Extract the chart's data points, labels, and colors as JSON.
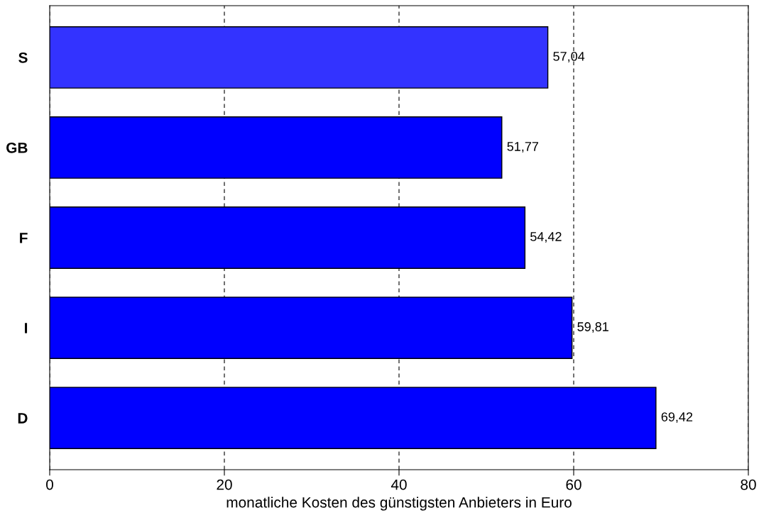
{
  "chart_data": {
    "type": "bar",
    "orientation": "horizontal",
    "xlabel": "monatliche Kosten des günstigsten Anbieters in Euro",
    "categories": [
      "S",
      "GB",
      "F",
      "I",
      "D"
    ],
    "values": [
      57.04,
      51.77,
      54.42,
      59.81,
      69.42
    ],
    "value_labels": [
      "57,04",
      "51,77",
      "54,42",
      "59,81",
      "69,42"
    ],
    "colors": [
      "#3333ff",
      "#0000ff",
      "#0000ff",
      "#0000ff",
      "#0000ff"
    ],
    "xlim": [
      0,
      80
    ],
    "xticks": [
      0,
      20,
      40,
      60,
      80
    ],
    "grid": "x",
    "legend": false
  }
}
